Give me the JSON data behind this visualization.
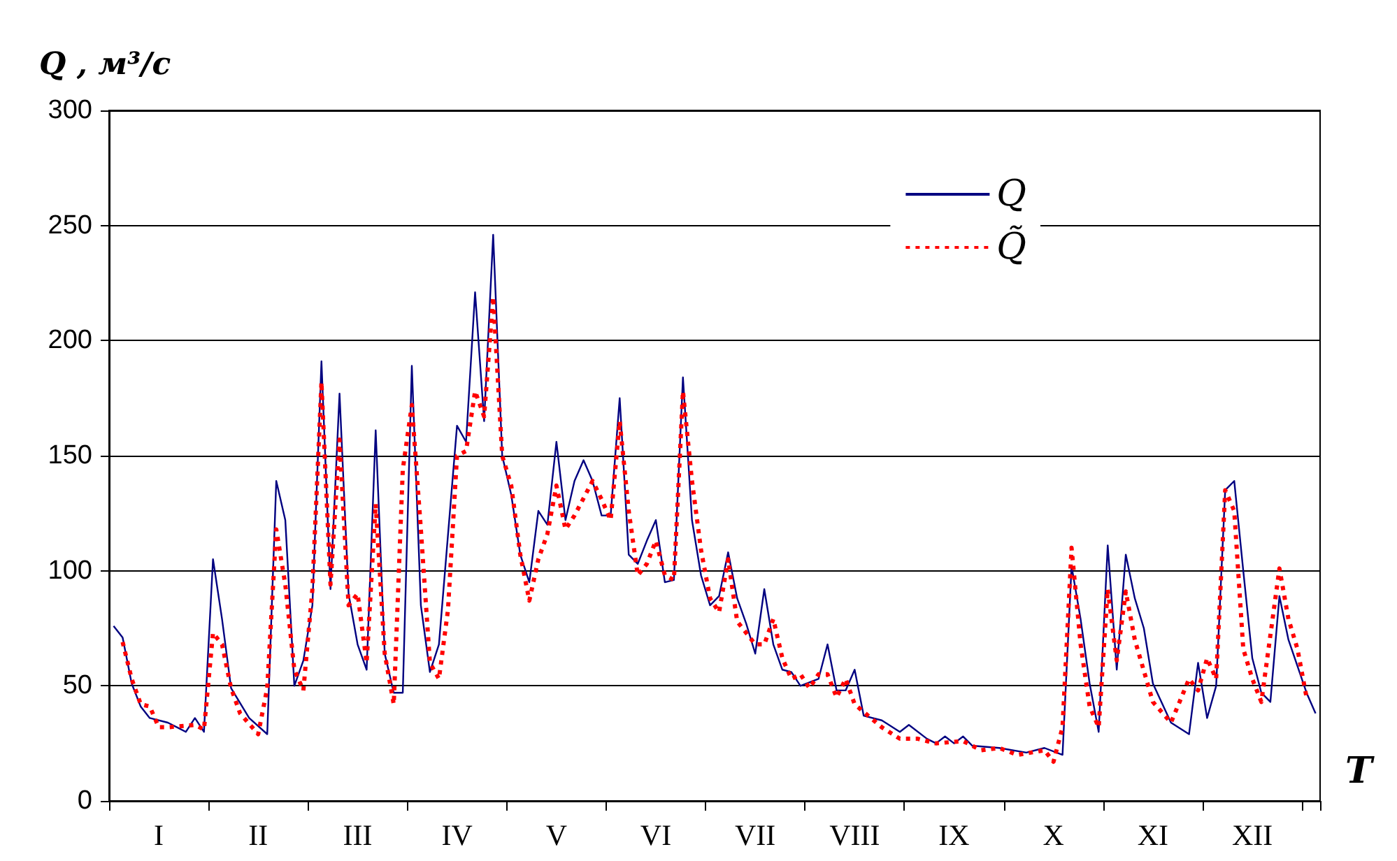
{
  "chart_data": {
    "type": "line",
    "xlabel": "T",
    "ylabel": "Q , м³/с",
    "categories": [
      null,
      null,
      null,
      null,
      null,
      "I",
      null,
      null,
      null,
      null,
      null,
      null,
      null,
      null,
      null,
      null,
      "II",
      null,
      null,
      null,
      null,
      null,
      null,
      null,
      null,
      null,
      null,
      "III",
      null,
      null,
      null,
      null,
      null,
      null,
      null,
      null,
      null,
      null,
      "IV",
      null,
      null,
      null,
      null,
      null,
      null,
      null,
      null,
      null,
      null,
      "V",
      null,
      null,
      null,
      null,
      null,
      null,
      null,
      null,
      null,
      null,
      "VI",
      null,
      null,
      null,
      null,
      null,
      null,
      null,
      null,
      null,
      null,
      "VII",
      null,
      null,
      null,
      null,
      null,
      null,
      null,
      null,
      null,
      null,
      "VIII",
      null,
      null,
      null,
      null,
      null,
      null,
      null,
      null,
      null,
      null,
      "IX",
      null,
      null,
      null,
      null,
      null,
      null,
      null,
      null,
      null,
      null,
      "X",
      null,
      null,
      null,
      null,
      null,
      null,
      null,
      null,
      null,
      null,
      "XI",
      null,
      null,
      null,
      null,
      null,
      null,
      null,
      null,
      null,
      null,
      "XII",
      null,
      null,
      null,
      null,
      null,
      null,
      null
    ],
    "ylim": [
      0,
      300
    ],
    "yticks": [
      0,
      50,
      100,
      150,
      200,
      250,
      300
    ],
    "grid": "y",
    "legend": "top right",
    "marker": "none",
    "series": [
      {
        "name": "Q",
        "color": "#000080",
        "line_style": "solid",
        "values": [
          76,
          71,
          51,
          41,
          36,
          null,
          34,
          null,
          30,
          36,
          30,
          105,
          79,
          49,
          null,
          36,
          null,
          29,
          139,
          122,
          50,
          61,
          85,
          191,
          92,
          177,
          90,
          68,
          57,
          161,
          64,
          47,
          47,
          189,
          85,
          56,
          68,
          null,
          163,
          156,
          221,
          165,
          246,
          150,
          133,
          107,
          95,
          126,
          120,
          156,
          122,
          139,
          148,
          139,
          124,
          124,
          175,
          107,
          103,
          113,
          122,
          95,
          96,
          184,
          122,
          98,
          85,
          89,
          108,
          88,
          77,
          64,
          92,
          68,
          57,
          56,
          50,
          null,
          53,
          68,
          48,
          48,
          57,
          37,
          null,
          35,
          null,
          30,
          33,
          null,
          27,
          25,
          28,
          25,
          28,
          24,
          null,
          null,
          23,
          null,
          null,
          21,
          null,
          23,
          null,
          20,
          102,
          79,
          51,
          30,
          111,
          57,
          107,
          88,
          75,
          51,
          null,
          34,
          null,
          29,
          60,
          36,
          50,
          135,
          139,
          100,
          62,
          47,
          43,
          89,
          70,
          null,
          47,
          38
        ]
      },
      {
        "name": "Q̃",
        "color": "#ff0000",
        "line_style": "dotted",
        "values": [
          null,
          69,
          53,
          42,
          41,
          32,
          32,
          null,
          null,
          33,
          31,
          73,
          68,
          49,
          38,
          null,
          29,
          49,
          118,
          94,
          57,
          48,
          92,
          182,
          94,
          157,
          85,
          90,
          60,
          129,
          64,
          42,
          144,
          172,
          118,
          60,
          53,
          83,
          150,
          152,
          178,
          167,
          219,
          150,
          137,
          107,
          87,
          105,
          116,
          137,
          118,
          124,
          null,
          139,
          131,
          122,
          165,
          126,
          98,
          103,
          113,
          98,
          96,
          178,
          139,
          109,
          88,
          82,
          105,
          78,
          null,
          68,
          68,
          79,
          62,
          53,
          55,
          49,
          55,
          55,
          45,
          53,
          42,
          null,
          null,
          32,
          null,
          27,
          null,
          27,
          null,
          25,
          null,
          null,
          26,
          null,
          22,
          null,
          23,
          null,
          20,
          null,
          null,
          22,
          17,
          32,
          110,
          68,
          41,
          32,
          92,
          61,
          91,
          70,
          null,
          43,
          null,
          34,
          null,
          53,
          48,
          62,
          53,
          135,
          126,
          66,
          53,
          43,
          null,
          101,
          79,
          66,
          45,
          null
        ]
      }
    ]
  }
}
